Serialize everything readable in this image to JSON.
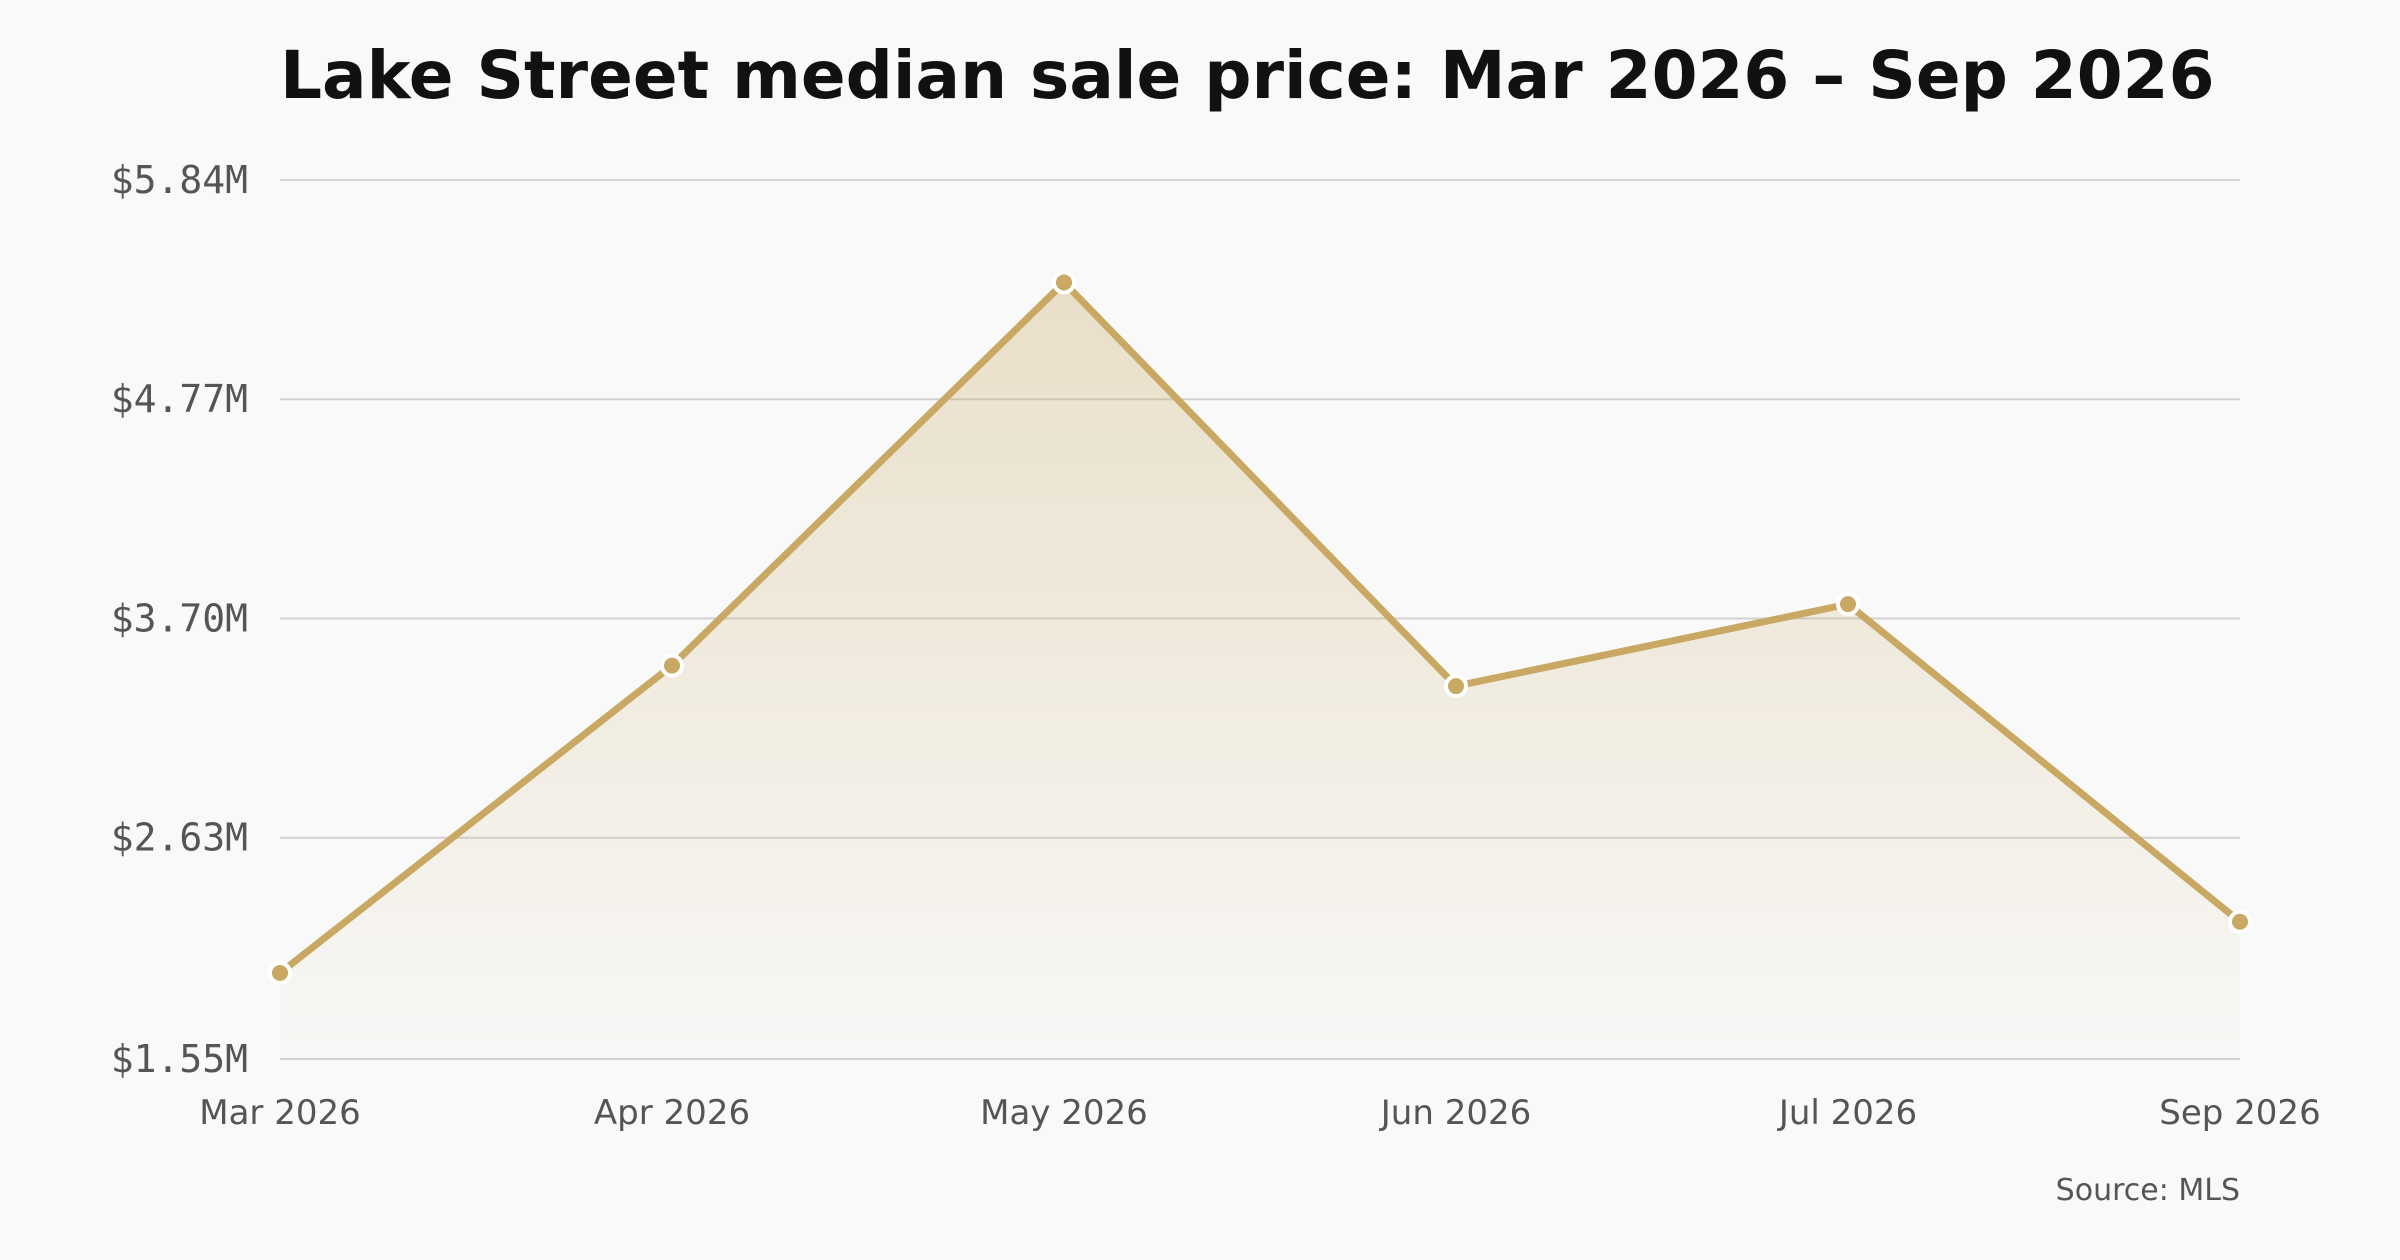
{
  "chart_data": {
    "type": "area",
    "title": "Lake Street median sale price: Mar 2026 – Sep 2026",
    "xlabel": "",
    "ylabel": "",
    "categories": [
      "Mar 2026",
      "Apr 2026",
      "May 2026",
      "Jun 2026",
      "Jul 2026",
      "Sep 2026"
    ],
    "values": [
      1.97,
      3.47,
      5.34,
      3.37,
      3.77,
      2.22
    ],
    "ylim": [
      1.55,
      5.84
    ],
    "y_ticks": [
      1.55,
      2.63,
      3.7,
      4.77,
      5.84
    ],
    "y_tick_labels": [
      "$1.55M",
      "$2.63M",
      "$3.70M",
      "$4.77M",
      "$5.84M"
    ],
    "grid": true,
    "legend": "none",
    "source": "Source: MLS",
    "colors": {
      "line": "#c8a862",
      "fill": "#c8a862",
      "grid": "#d2d2d2",
      "background": "#f9f9f9"
    }
  }
}
